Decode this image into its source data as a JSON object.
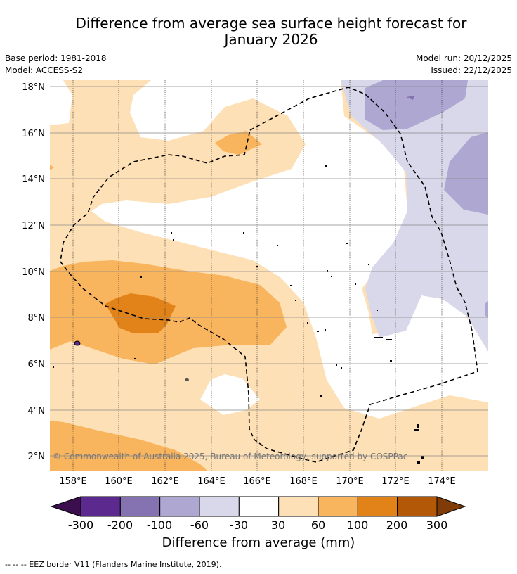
{
  "header": {
    "title_line1": "Difference from average sea surface height forecast for",
    "title_line2": "January 2026",
    "base_period": "Base period: 1981-2018",
    "model": "Model: ACCESS-S2",
    "model_run": "Model run: 20/12/2025",
    "issued": "Issued: 22/12/2025"
  },
  "map": {
    "lon_ticks": [
      "158°E",
      "160°E",
      "162°E",
      "164°E",
      "166°E",
      "168°E",
      "170°E",
      "172°E",
      "174°E"
    ],
    "lat_ticks": [
      "18°N",
      "16°N",
      "14°N",
      "12°N",
      "10°N",
      "8°N",
      "6°N",
      "4°N",
      "2°N"
    ],
    "copyright": "© Commonwealth of Australia 2025, Bureau of Meteorology, supported by COSPPac"
  },
  "colorbar": {
    "title": "Difference from average (mm)",
    "labels": [
      "-300",
      "-200",
      "-100",
      "-60",
      "-30",
      "30",
      "60",
      "100",
      "200",
      "300"
    ],
    "colors": [
      "#3b0f4d",
      "#5c2a8e",
      "#8473b0",
      "#aea7d2",
      "#d8d8ea",
      "#ffffff",
      "#fde0b5",
      "#f9b45e",
      "#e2831a",
      "#b35807",
      "#7f3b08"
    ]
  },
  "footer": {
    "eez_legend": "--  --  -- EEZ border V11 (Flanders Marine Institute, 2019)."
  }
}
